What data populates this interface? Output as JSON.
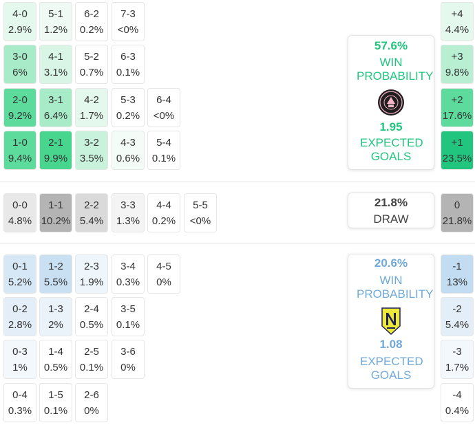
{
  "home": {
    "win_probability": "57.6%",
    "win_label": "WIN PROBABILITY",
    "expected_goals": "1.95",
    "xg_label": "EXPECTED GOALS",
    "logo_icon": "inter-miami-crest-icon",
    "color": "#22c57e"
  },
  "draw": {
    "probability": "21.8%",
    "label": "DRAW"
  },
  "away": {
    "win_probability": "20.6%",
    "win_label": "WIN PROBABILITY",
    "expected_goals": "1.08",
    "xg_label": "EXPECTED GOALS",
    "logo_icon": "nashville-sc-crest-icon",
    "color": "#6fa9d8"
  },
  "home_win_rows": [
    [
      {
        "score": "4-0",
        "pct": "2.9%",
        "bg": "#e5f8ee"
      },
      {
        "score": "5-1",
        "pct": "1.2%",
        "bg": "#eefaf3"
      },
      {
        "score": "6-2",
        "pct": "0.2%",
        "bg": "#ffffff"
      },
      {
        "score": "7-3",
        "pct": "<0%",
        "bg": "#ffffff"
      }
    ],
    [
      {
        "score": "3-0",
        "pct": "6%",
        "bg": "#a8ebc9"
      },
      {
        "score": "4-1",
        "pct": "3.1%",
        "bg": "#d8f5e6"
      },
      {
        "score": "5-2",
        "pct": "0.7%",
        "bg": "#ffffff"
      },
      {
        "score": "6-3",
        "pct": "0.1%",
        "bg": "#ffffff"
      }
    ],
    [
      {
        "score": "2-0",
        "pct": "9.2%",
        "bg": "#5cdb9c"
      },
      {
        "score": "3-1",
        "pct": "6.4%",
        "bg": "#a8ebc9"
      },
      {
        "score": "4-2",
        "pct": "1.7%",
        "bg": "#e5f8ee"
      },
      {
        "score": "5-3",
        "pct": "0.2%",
        "bg": "#ffffff"
      },
      {
        "score": "6-4",
        "pct": "<0%",
        "bg": "#ffffff"
      }
    ],
    [
      {
        "score": "1-0",
        "pct": "9.4%",
        "bg": "#5cdb9c"
      },
      {
        "score": "2-1",
        "pct": "9.9%",
        "bg": "#48d58e"
      },
      {
        "score": "3-2",
        "pct": "3.5%",
        "bg": "#c9f2dc"
      },
      {
        "score": "4-3",
        "pct": "0.6%",
        "bg": "#f4fcf7"
      },
      {
        "score": "5-4",
        "pct": "0.1%",
        "bg": "#ffffff"
      }
    ]
  ],
  "draw_row": [
    {
      "score": "0-0",
      "pct": "4.8%",
      "bg": "#e8e8e8"
    },
    {
      "score": "1-1",
      "pct": "10.2%",
      "bg": "#b4b4b4"
    },
    {
      "score": "2-2",
      "pct": "5.4%",
      "bg": "#dadada"
    },
    {
      "score": "3-3",
      "pct": "1.3%",
      "bg": "#f4f4f4"
    },
    {
      "score": "4-4",
      "pct": "0.2%",
      "bg": "#ffffff"
    },
    {
      "score": "5-5",
      "pct": "<0%",
      "bg": "#ffffff"
    }
  ],
  "away_win_rows": [
    [
      {
        "score": "0-1",
        "pct": "5.2%",
        "bg": "#d6e8f6"
      },
      {
        "score": "1-2",
        "pct": "5.5%",
        "bg": "#c9e0f3"
      },
      {
        "score": "2-3",
        "pct": "1.9%",
        "bg": "#eef5fb"
      },
      {
        "score": "3-4",
        "pct": "0.3%",
        "bg": "#ffffff"
      },
      {
        "score": "4-5",
        "pct": "0%",
        "bg": "#ffffff"
      }
    ],
    [
      {
        "score": "0-2",
        "pct": "2.8%",
        "bg": "#e3eef8"
      },
      {
        "score": "1-3",
        "pct": "2%",
        "bg": "#eaf3fa"
      },
      {
        "score": "2-4",
        "pct": "0.5%",
        "bg": "#ffffff"
      },
      {
        "score": "3-5",
        "pct": "0.1%",
        "bg": "#ffffff"
      }
    ],
    [
      {
        "score": "0-3",
        "pct": "1%",
        "bg": "#f3f8fc"
      },
      {
        "score": "1-4",
        "pct": "0.5%",
        "bg": "#ffffff"
      },
      {
        "score": "2-5",
        "pct": "0.1%",
        "bg": "#ffffff"
      },
      {
        "score": "3-6",
        "pct": "0%",
        "bg": "#ffffff"
      }
    ],
    [
      {
        "score": "0-4",
        "pct": "0.3%",
        "bg": "#ffffff"
      },
      {
        "score": "1-5",
        "pct": "0.1%",
        "bg": "#ffffff"
      },
      {
        "score": "2-6",
        "pct": "0%",
        "bg": "#ffffff"
      }
    ]
  ],
  "margins_home": [
    {
      "label": "+4",
      "pct": "4.4%",
      "bg": "#e5f8ee"
    },
    {
      "label": "+3",
      "pct": "9.8%",
      "bg": "#b8eed2"
    },
    {
      "label": "+2",
      "pct": "17.6%",
      "bg": "#5cdb9c"
    },
    {
      "label": "+1",
      "pct": "23.5%",
      "bg": "#22c57e"
    }
  ],
  "margin_draw": {
    "label": "0",
    "pct": "21.8%",
    "bg": "#b4b4b4"
  },
  "margins_away": [
    {
      "label": "-1",
      "pct": "13%",
      "bg": "#c2dcf2"
    },
    {
      "label": "-2",
      "pct": "5.4%",
      "bg": "#e3eef8"
    },
    {
      "label": "-3",
      "pct": "1.7%",
      "bg": "#f3f8fc"
    },
    {
      "label": "-4",
      "pct": "0.4%",
      "bg": "#ffffff"
    }
  ]
}
